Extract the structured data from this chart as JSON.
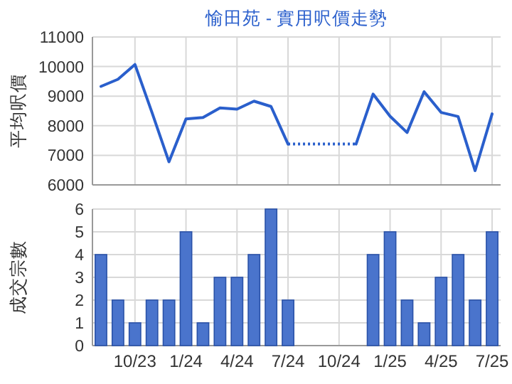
{
  "chart_data": [
    {
      "type": "line",
      "title": "愉田苑 - 實用呎價走勢",
      "ylabel": "平均呎價",
      "categories": [
        null,
        null,
        null,
        null,
        null,
        null,
        null,
        null,
        null,
        null,
        null,
        null,
        null,
        null,
        null,
        null,
        null,
        null,
        null,
        null,
        null,
        null,
        null,
        null
      ],
      "values": [
        9330,
        9570,
        10070,
        8450,
        6780,
        8230,
        8280,
        8600,
        8560,
        8830,
        8650,
        7380,
        null,
        null,
        null,
        7380,
        9070,
        8320,
        7770,
        9150,
        8450,
        8310,
        6480,
        8400
      ],
      "color": "#2a5fcc",
      "ylim": [
        6000,
        11000
      ],
      "yticks": [
        6000,
        7000,
        8000,
        9000,
        10000,
        11000
      ],
      "grid": true,
      "tick_labels": "y"
    },
    {
      "type": "bar",
      "ylabel": "成交宗數",
      "categories": [
        null,
        null,
        "10/23",
        null,
        null,
        "1/24",
        null,
        null,
        "4/24",
        null,
        null,
        "7/24",
        null,
        null,
        "10/24",
        null,
        null,
        "1/25",
        null,
        null,
        "4/25",
        null,
        null,
        "7/25"
      ],
      "values": [
        4,
        2,
        1,
        2,
        2,
        5,
        1,
        3,
        3,
        4,
        6,
        2,
        0,
        0,
        0,
        0,
        4,
        5,
        2,
        1,
        3,
        4,
        2,
        5
      ],
      "color": "#4a74cc",
      "ylim": [
        0,
        6
      ],
      "yticks": [
        0,
        1,
        2,
        3,
        4,
        5,
        6
      ],
      "grid": true
    }
  ]
}
